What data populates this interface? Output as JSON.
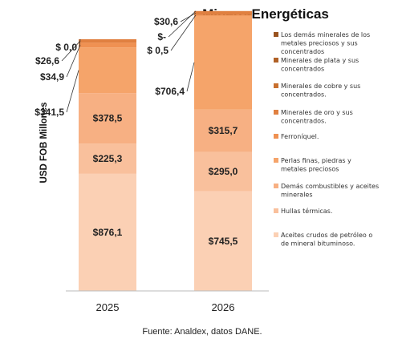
{
  "chart_data": {
    "type": "bar",
    "stacked": true,
    "title": "Minero-Energéticas",
    "ylabel": "USD FOB Millones",
    "categories": [
      "2025",
      "2026"
    ],
    "series": [
      {
        "name": "Aceites crudos de petróleo o de mineral bituminoso.",
        "color": "#fbd0b4",
        "values": [
          876.1,
          745.5
        ],
        "labels": [
          "$876,1",
          "$745,5"
        ]
      },
      {
        "name": "Hullas térmicas.",
        "color": "#f9c09c",
        "values": [
          225.3,
          295.0
        ],
        "labels": [
          "$225,3",
          "$295,0"
        ]
      },
      {
        "name": "Demás combustibles y aceites minerales",
        "color": "#f7b083",
        "values": [
          378.5,
          315.7
        ],
        "labels": [
          "$378,5",
          "$315,7"
        ]
      },
      {
        "name": "Perlas finas, piedras y metales preciosos",
        "color": "#f5a46a",
        "values": [
          341.5,
          706.4
        ],
        "labels": [
          "$341,5",
          "$706,4"
        ]
      },
      {
        "name": "Ferroníquel.",
        "color": "#ef9152",
        "values": [
          34.9,
          0.5
        ],
        "labels": [
          "$34,9",
          "$ 0,5"
        ]
      },
      {
        "name": "Minerales de oro y sus concentrados.",
        "color": "#e08040",
        "values": [
          26.6,
          30.6
        ],
        "labels": [
          "$26,6",
          "$30,6"
        ]
      },
      {
        "name": "Minerales de cobre y sus concentrados.",
        "color": "#c8702f",
        "values": [
          0,
          0
        ],
        "labels": [
          "",
          ""
        ]
      },
      {
        "name": "Minerales de plata y sus concentrados",
        "color": "#b06026",
        "values": [
          0,
          0
        ],
        "labels": [
          "",
          ""
        ]
      },
      {
        "name": "Los demás minerales de los metales preciosos y sus concentrados",
        "color": "#98521e",
        "values": [
          0.0,
          0
        ],
        "labels": [
          "$ 0,0",
          "$-"
        ]
      }
    ],
    "ylim": [
      0,
      2000
    ],
    "legend_position": "right"
  },
  "source": "Fuente: Analdex, datos DANE."
}
